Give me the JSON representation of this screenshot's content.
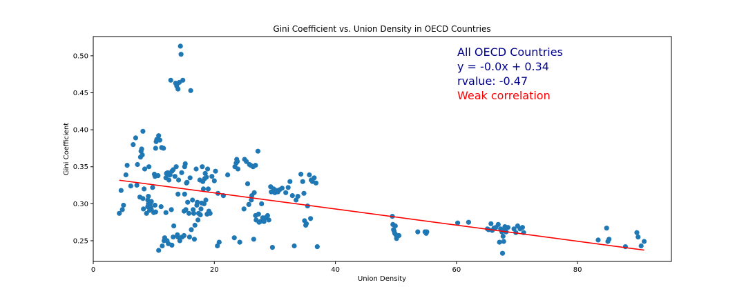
{
  "chart_data": {
    "type": "scatter",
    "title": "Gini Coefficient vs. Union Density in OECD Countries",
    "xlabel": "Union Density",
    "ylabel": "Gini Coefficient",
    "xlim": [
      0,
      95.5
    ],
    "ylim": [
      0.222,
      0.526
    ],
    "xticks": [
      0,
      20,
      40,
      60,
      80
    ],
    "xtick_labels": [
      "0",
      "20",
      "40",
      "60",
      "80"
    ],
    "yticks": [
      0.25,
      0.3,
      0.35,
      0.4,
      0.45,
      0.5
    ],
    "ytick_labels": [
      "0.25",
      "0.30",
      "0.35",
      "0.40",
      "0.45",
      "0.50"
    ],
    "grid": false,
    "colors": {
      "points": "#1f77b4",
      "regression": "#ff0000",
      "annotation": "#00008b",
      "annotation_highlight": "#ff0000"
    },
    "regression": {
      "slope": -0.00109,
      "intercept": 0.3365,
      "x_start": 4.3,
      "x_end": 91.0
    },
    "annotations": [
      {
        "text": "All OECD Countries",
        "color": "#00008b"
      },
      {
        "text": "y = -0.0x + 0.34",
        "color": "#00008b"
      },
      {
        "text": "rvalue: -0.47",
        "color": "#00008b"
      },
      {
        "text": "Weak correlation",
        "color": "#ff0000"
      }
    ],
    "points": [
      [
        4.3,
        0.287
      ],
      [
        4.6,
        0.318
      ],
      [
        4.8,
        0.292
      ],
      [
        5.0,
        0.298
      ],
      [
        5.4,
        0.339
      ],
      [
        5.6,
        0.352
      ],
      [
        6.2,
        0.324
      ],
      [
        6.6,
        0.38
      ],
      [
        7.0,
        0.389
      ],
      [
        7.2,
        0.325
      ],
      [
        7.3,
        0.353
      ],
      [
        7.7,
        0.309
      ],
      [
        7.8,
        0.363
      ],
      [
        7.9,
        0.371
      ],
      [
        8.0,
        0.374
      ],
      [
        8.1,
        0.366
      ],
      [
        8.2,
        0.398
      ],
      [
        8.2,
        0.307
      ],
      [
        8.3,
        0.293
      ],
      [
        8.4,
        0.32
      ],
      [
        8.5,
        0.347
      ],
      [
        8.8,
        0.287
      ],
      [
        9.0,
        0.296
      ],
      [
        9.0,
        0.305
      ],
      [
        9.1,
        0.3
      ],
      [
        9.1,
        0.31
      ],
      [
        9.2,
        0.35
      ],
      [
        9.3,
        0.291
      ],
      [
        9.4,
        0.3
      ],
      [
        9.5,
        0.295
      ],
      [
        9.6,
        0.292
      ],
      [
        9.6,
        0.303
      ],
      [
        9.8,
        0.322
      ],
      [
        10.0,
        0.288
      ],
      [
        10.1,
        0.34
      ],
      [
        10.2,
        0.298
      ],
      [
        10.2,
        0.337
      ],
      [
        10.3,
        0.375
      ],
      [
        10.3,
        0.289
      ],
      [
        10.4,
        0.384
      ],
      [
        10.5,
        0.387
      ],
      [
        10.7,
        0.338
      ],
      [
        10.8,
        0.392
      ],
      [
        10.8,
        0.237
      ],
      [
        11.0,
        0.386
      ],
      [
        11.2,
        0.296
      ],
      [
        11.3,
        0.376
      ],
      [
        11.4,
        0.243
      ],
      [
        11.6,
        0.375
      ],
      [
        11.7,
        0.25
      ],
      [
        11.8,
        0.254
      ],
      [
        12.0,
        0.288
      ],
      [
        12.0,
        0.335
      ],
      [
        12.1,
        0.341
      ],
      [
        12.2,
        0.25
      ],
      [
        12.3,
        0.342
      ],
      [
        12.4,
        0.246
      ],
      [
        12.5,
        0.332
      ],
      [
        12.6,
        0.339
      ],
      [
        12.7,
        0.339
      ],
      [
        12.8,
        0.467
      ],
      [
        12.9,
        0.292
      ],
      [
        13.0,
        0.344
      ],
      [
        13.0,
        0.244
      ],
      [
        13.2,
        0.346
      ],
      [
        13.2,
        0.255
      ],
      [
        13.3,
        0.27
      ],
      [
        13.5,
        0.337
      ],
      [
        13.6,
        0.463
      ],
      [
        13.7,
        0.35
      ],
      [
        13.8,
        0.459
      ],
      [
        13.9,
        0.258
      ],
      [
        14.0,
        0.255
      ],
      [
        14.0,
        0.313
      ],
      [
        14.0,
        0.455
      ],
      [
        14.1,
        0.332
      ],
      [
        14.2,
        0.464
      ],
      [
        14.3,
        0.25
      ],
      [
        14.4,
        0.513
      ],
      [
        14.5,
        0.502
      ],
      [
        14.6,
        0.342
      ],
      [
        14.7,
        0.255
      ],
      [
        14.8,
        0.467
      ],
      [
        15.0,
        0.257
      ],
      [
        15.0,
        0.29
      ],
      [
        15.1,
        0.313
      ],
      [
        15.1,
        0.35
      ],
      [
        15.2,
        0.354
      ],
      [
        15.3,
        0.292
      ],
      [
        15.4,
        0.328
      ],
      [
        15.5,
        0.329
      ],
      [
        15.6,
        0.302
      ],
      [
        15.8,
        0.287
      ],
      [
        15.9,
        0.255
      ],
      [
        16.0,
        0.335
      ],
      [
        16.1,
        0.453
      ],
      [
        16.2,
        0.265
      ],
      [
        16.4,
        0.305
      ],
      [
        16.5,
        0.292
      ],
      [
        16.6,
        0.287
      ],
      [
        16.7,
        0.252
      ],
      [
        16.8,
        0.271
      ],
      [
        17.0,
        0.347
      ],
      [
        17.1,
        0.298
      ],
      [
        17.2,
        0.302
      ],
      [
        17.3,
        0.278
      ],
      [
        17.4,
        0.287
      ],
      [
        17.6,
        0.332
      ],
      [
        17.7,
        0.285
      ],
      [
        17.8,
        0.293
      ],
      [
        17.9,
        0.301
      ],
      [
        18.0,
        0.35
      ],
      [
        18.1,
        0.33
      ],
      [
        18.2,
        0.32
      ],
      [
        18.3,
        0.3
      ],
      [
        18.4,
        0.334
      ],
      [
        18.5,
        0.341
      ],
      [
        18.6,
        0.305
      ],
      [
        18.7,
        0.336
      ],
      [
        18.8,
        0.286
      ],
      [
        18.9,
        0.347
      ],
      [
        19.0,
        0.32
      ],
      [
        19.1,
        0.29
      ],
      [
        19.3,
        0.287
      ],
      [
        19.6,
        0.337
      ],
      [
        20.0,
        0.331
      ],
      [
        20.2,
        0.344
      ],
      [
        20.5,
        0.243
      ],
      [
        20.6,
        0.314
      ],
      [
        20.8,
        0.248
      ],
      [
        21.5,
        0.311
      ],
      [
        22.2,
        0.339
      ],
      [
        23.3,
        0.254
      ],
      [
        23.4,
        0.35
      ],
      [
        23.6,
        0.355
      ],
      [
        23.7,
        0.36
      ],
      [
        23.8,
        0.357
      ],
      [
        23.9,
        0.347
      ],
      [
        24.2,
        0.248
      ],
      [
        24.9,
        0.293
      ],
      [
        25.0,
        0.36
      ],
      [
        25.3,
        0.357
      ],
      [
        25.5,
        0.327
      ],
      [
        25.7,
        0.299
      ],
      [
        25.8,
        0.353
      ],
      [
        26.0,
        0.352
      ],
      [
        26.1,
        0.305
      ],
      [
        26.2,
        0.311
      ],
      [
        26.4,
        0.35
      ],
      [
        26.5,
        0.252
      ],
      [
        26.6,
        0.315
      ],
      [
        26.8,
        0.352
      ],
      [
        26.8,
        0.284
      ],
      [
        26.9,
        0.278
      ],
      [
        27.2,
        0.371
      ],
      [
        27.3,
        0.286
      ],
      [
        27.4,
        0.275
      ],
      [
        27.6,
        0.276
      ],
      [
        27.8,
        0.3
      ],
      [
        28.0,
        0.281
      ],
      [
        28.2,
        0.276
      ],
      [
        28.4,
        0.281
      ],
      [
        28.8,
        0.284
      ],
      [
        29.0,
        0.278
      ],
      [
        29.3,
        0.323
      ],
      [
        29.4,
        0.316
      ],
      [
        29.6,
        0.241
      ],
      [
        29.8,
        0.32
      ],
      [
        30.0,
        0.315
      ],
      [
        30.3,
        0.318
      ],
      [
        30.5,
        0.316
      ],
      [
        30.8,
        0.319
      ],
      [
        31.2,
        0.321
      ],
      [
        31.8,
        0.315
      ],
      [
        32.2,
        0.322
      ],
      [
        32.5,
        0.33
      ],
      [
        32.9,
        0.311
      ],
      [
        33.2,
        0.243
      ],
      [
        33.5,
        0.305
      ],
      [
        33.8,
        0.31
      ],
      [
        34.3,
        0.34
      ],
      [
        34.6,
        0.33
      ],
      [
        34.8,
        0.314
      ],
      [
        34.9,
        0.277
      ],
      [
        35.1,
        0.271
      ],
      [
        35.2,
        0.273
      ],
      [
        35.4,
        0.297
      ],
      [
        35.7,
        0.339
      ],
      [
        35.9,
        0.28
      ],
      [
        36.0,
        0.332
      ],
      [
        36.2,
        0.33
      ],
      [
        36.5,
        0.335
      ],
      [
        36.8,
        0.328
      ],
      [
        37.0,
        0.242
      ],
      [
        49.4,
        0.283
      ],
      [
        49.5,
        0.272
      ],
      [
        49.6,
        0.265
      ],
      [
        49.7,
        0.263
      ],
      [
        49.8,
        0.26
      ],
      [
        49.9,
        0.27
      ],
      [
        50.0,
        0.258
      ],
      [
        50.1,
        0.253
      ],
      [
        50.5,
        0.257
      ],
      [
        53.6,
        0.262
      ],
      [
        54.8,
        0.262
      ],
      [
        55.0,
        0.26
      ],
      [
        55.1,
        0.262
      ],
      [
        60.2,
        0.274
      ],
      [
        62.0,
        0.275
      ],
      [
        65.1,
        0.266
      ],
      [
        65.3,
        0.265
      ],
      [
        65.7,
        0.273
      ],
      [
        65.9,
        0.264
      ],
      [
        66.2,
        0.267
      ],
      [
        66.5,
        0.268
      ],
      [
        66.9,
        0.272
      ],
      [
        67.1,
        0.248
      ],
      [
        67.3,
        0.266
      ],
      [
        67.5,
        0.262
      ],
      [
        67.6,
        0.233
      ],
      [
        67.7,
        0.256
      ],
      [
        67.8,
        0.249
      ],
      [
        67.9,
        0.265
      ],
      [
        68.0,
        0.269
      ],
      [
        68.2,
        0.262
      ],
      [
        68.5,
        0.268
      ],
      [
        69.5,
        0.266
      ],
      [
        69.8,
        0.261
      ],
      [
        70.1,
        0.27
      ],
      [
        70.5,
        0.266
      ],
      [
        70.9,
        0.268
      ],
      [
        71.1,
        0.261
      ],
      [
        83.4,
        0.251
      ],
      [
        84.8,
        0.267
      ],
      [
        85.0,
        0.249
      ],
      [
        85.2,
        0.252
      ],
      [
        87.9,
        0.242
      ],
      [
        89.8,
        0.261
      ],
      [
        90.0,
        0.255
      ],
      [
        90.5,
        0.243
      ],
      [
        91.0,
        0.249
      ]
    ]
  }
}
